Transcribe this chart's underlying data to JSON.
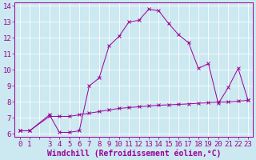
{
  "xlabel": "Windchill (Refroidissement éolien,°C)",
  "background_color": "#cce8f0",
  "line_color": "#990099",
  "grid_color": "#ffffff",
  "x_values": [
    0,
    1,
    3,
    4,
    5,
    6,
    7,
    8,
    9,
    10,
    11,
    12,
    13,
    14,
    15,
    16,
    17,
    18,
    19,
    20,
    21,
    22,
    23
  ],
  "y_main": [
    6.2,
    6.2,
    7.2,
    6.1,
    6.1,
    6.2,
    9.0,
    9.5,
    11.5,
    12.1,
    13.0,
    13.1,
    13.8,
    13.7,
    12.9,
    12.2,
    11.7,
    10.1,
    10.4,
    7.9,
    8.9,
    10.1,
    8.1
  ],
  "x_base": [
    0,
    1,
    3,
    4,
    5,
    6,
    7,
    8,
    9,
    10,
    11,
    12,
    13,
    14,
    15,
    16,
    17,
    18,
    19,
    20,
    21,
    22,
    23
  ],
  "y_base": [
    6.2,
    6.2,
    7.1,
    7.1,
    7.1,
    7.2,
    7.3,
    7.4,
    7.5,
    7.6,
    7.65,
    7.7,
    7.75,
    7.8,
    7.82,
    7.85,
    7.88,
    7.92,
    7.95,
    8.0,
    8.0,
    8.05,
    8.1
  ],
  "ylim": [
    5.8,
    14.2
  ],
  "xlim": [
    -0.5,
    23.5
  ],
  "yticks": [
    6,
    7,
    8,
    9,
    10,
    11,
    12,
    13,
    14
  ],
  "xticks": [
    0,
    1,
    2,
    3,
    4,
    5,
    6,
    7,
    8,
    9,
    10,
    11,
    12,
    13,
    14,
    15,
    16,
    17,
    18,
    19,
    20,
    21,
    22,
    23
  ],
  "xtick_labels": [
    "0",
    "1",
    "",
    "3",
    "4",
    "5",
    "6",
    "7",
    "8",
    "9",
    "10",
    "11",
    "12",
    "13",
    "14",
    "15",
    "16",
    "17",
    "18",
    "19",
    "20",
    "21",
    "22",
    "23"
  ],
  "font_size": 6.5,
  "xlabel_fontsize": 7.0,
  "marker_size": 2.5,
  "linewidth": 0.7
}
